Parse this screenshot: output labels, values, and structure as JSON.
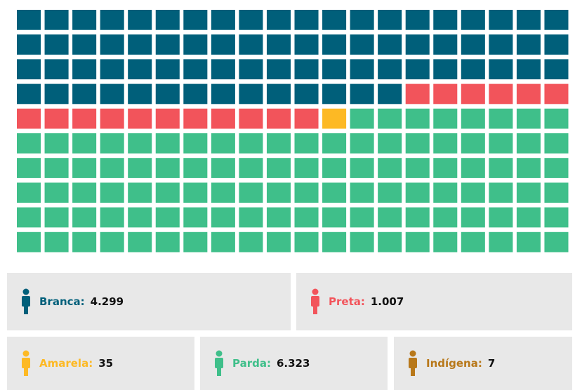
{
  "chart_data": {
    "type": "waffle",
    "categories": [
      "Branca",
      "Preta",
      "Amarela",
      "Parda",
      "Indígena"
    ],
    "values": [
      4299,
      1007,
      35,
      6323,
      7
    ],
    "value_labels": [
      "4.299",
      "1.007",
      "35",
      "6.323",
      "7"
    ],
    "colors": [
      "#005f7a",
      "#f2545b",
      "#fdb924",
      "#3fbf8a",
      "#b8781a"
    ],
    "columns": 20,
    "rows": 10
  }
}
